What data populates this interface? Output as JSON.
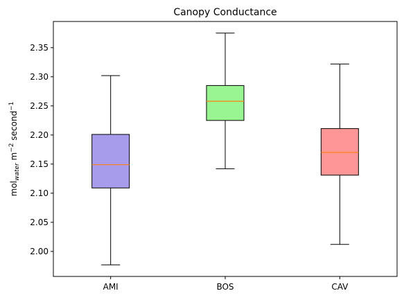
{
  "chart_data": {
    "type": "box",
    "title": "Canopy Conductance",
    "ylabel": {
      "base": "mol",
      "subscript": "water",
      "rest": " m",
      "exp1": "−2",
      "unit2": " second",
      "exp2": "−1"
    },
    "xlabel": "",
    "categories": [
      "AMI",
      "BOS",
      "CAV"
    ],
    "boxes": [
      {
        "name": "AMI",
        "whisker_low": 1.977,
        "q1": 2.109,
        "median": 2.149,
        "q3": 2.201,
        "whisker_high": 2.302,
        "color": "#a79cec"
      },
      {
        "name": "BOS",
        "whisker_low": 2.142,
        "q1": 2.225,
        "median": 2.258,
        "q3": 2.285,
        "whisker_high": 2.375,
        "color": "#98f592"
      },
      {
        "name": "CAV",
        "whisker_low": 2.012,
        "q1": 2.131,
        "median": 2.17,
        "q3": 2.211,
        "whisker_high": 2.322,
        "color": "#fe9698"
      }
    ],
    "median_color": "#ff7f0e",
    "ylim": [
      1.957,
      2.395
    ],
    "yticks": [
      "2.00",
      "2.05",
      "2.10",
      "2.15",
      "2.20",
      "2.25",
      "2.30",
      "2.35"
    ],
    "grid": false
  }
}
